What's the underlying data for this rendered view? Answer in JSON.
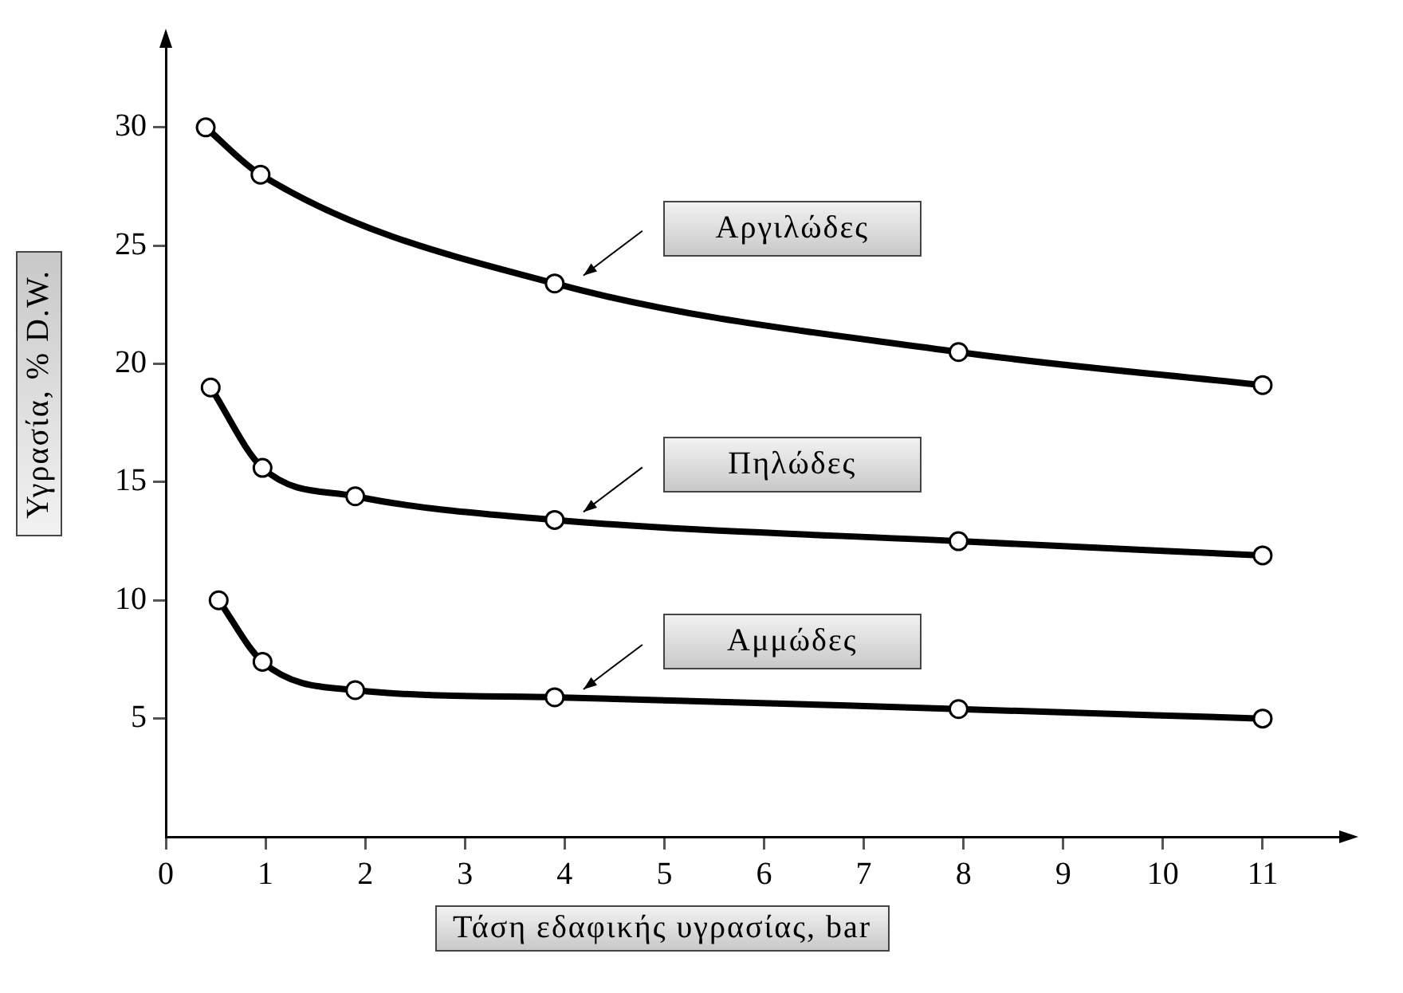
{
  "chart_data": {
    "type": "line",
    "xlabel": "Τάση εδαφικής υγρασίας, bar",
    "ylabel": "Υγρασία, % D.W.",
    "xlim": [
      0,
      11.8
    ],
    "xticks": [
      0,
      1,
      2,
      3,
      4,
      5,
      6,
      7,
      8,
      9,
      10,
      11
    ],
    "ylim": [
      0,
      33.5
    ],
    "yticks": [
      5,
      10,
      15,
      20,
      25,
      30
    ],
    "grid": false,
    "legend": false,
    "marker": "circle",
    "line_style": "solid",
    "series": [
      {
        "name": "Αργιλώδες",
        "color": "#000000",
        "x": [
          0.4,
          0.95,
          3.9,
          7.95,
          11
        ],
        "values": [
          30,
          28,
          23.4,
          20.5,
          19.1
        ]
      },
      {
        "name": "Πηλώδες",
        "color": "#000000",
        "x": [
          0.45,
          0.97,
          1.9,
          3.9,
          7.95,
          11
        ],
        "values": [
          19,
          15.6,
          14.4,
          13.4,
          12.5,
          11.9
        ]
      },
      {
        "name": "Αμμώδες",
        "color": "#000000",
        "x": [
          0.53,
          0.97,
          1.9,
          3.9,
          7.95,
          11
        ],
        "values": [
          10,
          7.4,
          6.2,
          5.9,
          5.4,
          5.0
        ]
      }
    ]
  }
}
